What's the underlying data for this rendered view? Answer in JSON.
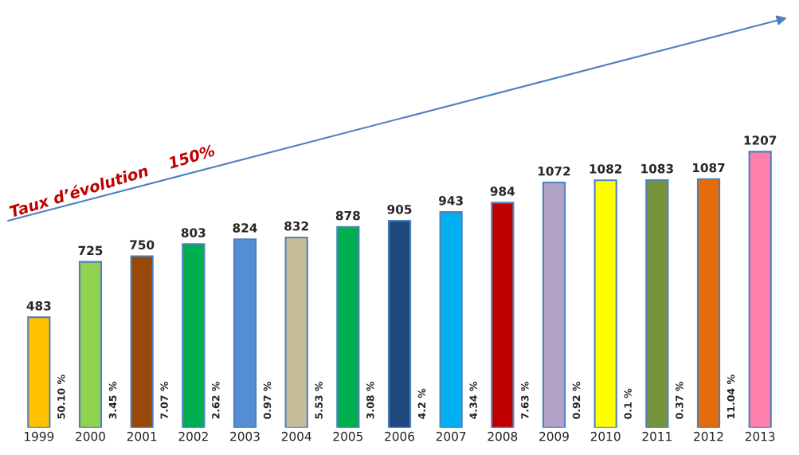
{
  "chart_data": {
    "type": "bar",
    "categories": [
      "1999",
      "2000",
      "2001",
      "2002",
      "2003",
      "2004",
      "2005",
      "2006",
      "2007",
      "2008",
      "2009",
      "2010",
      "2011",
      "2012",
      "2013"
    ],
    "values": [
      483,
      725,
      750,
      803,
      824,
      832,
      878,
      905,
      943,
      984,
      1072,
      1082,
      1083,
      1087,
      1207
    ],
    "colors": [
      "#ffc000",
      "#92d050",
      "#984807",
      "#00b050",
      "#558ed5",
      "#c4bd97",
      "#00b050",
      "#1f497d",
      "#00b0f0",
      "#c00000",
      "#b3a2c7",
      "#ffff00",
      "#77933c",
      "#e46c0a",
      "#ff7fac"
    ],
    "data_labels": true,
    "annotations": [
      "Taux d’évolution    150%",
      "50.10 %",
      "3.45 %",
      "7.07 %",
      "2.62 %",
      "0.97 %",
      "5.53 %",
      "3.08 %",
      "4.2 %",
      "4.34 %",
      "7.63 %",
      "0.92 %",
      "0.1 %",
      "0.37 %",
      "11.04 %"
    ],
    "grid": false,
    "legend": false
  }
}
